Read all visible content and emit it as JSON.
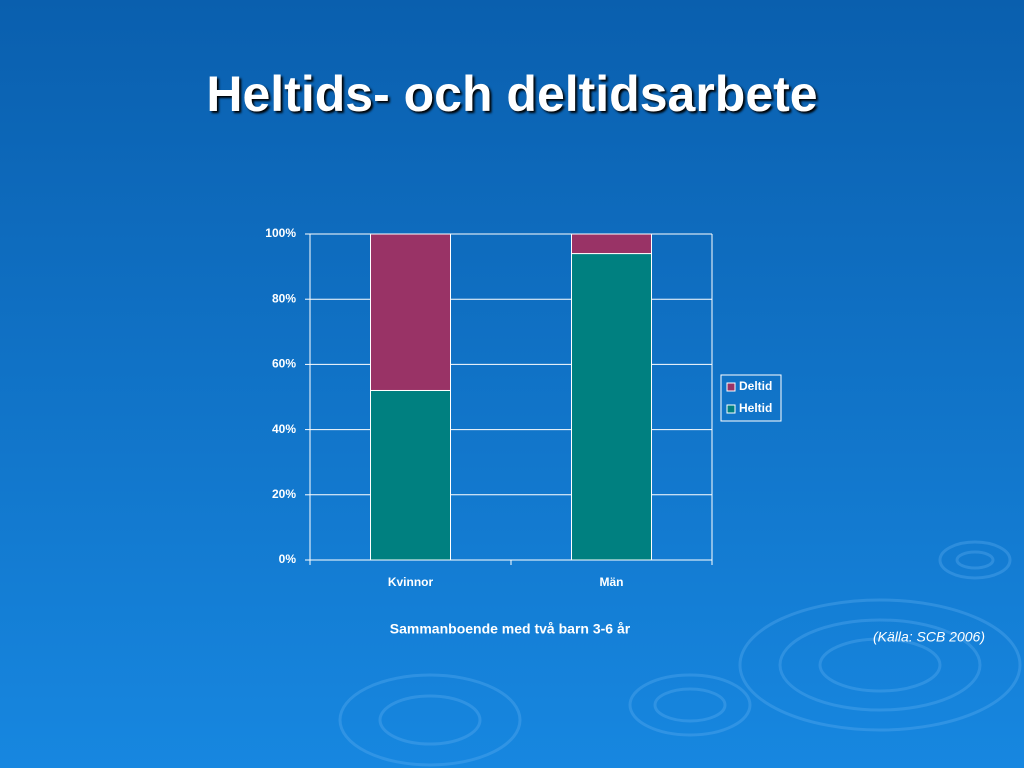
{
  "chart_data": {
    "type": "stacked_bar",
    "title": "Heltids- och deltidsarbete",
    "categories": [
      "Kvinnor",
      "Män"
    ],
    "series": [
      {
        "name": "Heltid",
        "color": "#008080",
        "values": [
          52,
          94
        ]
      },
      {
        "name": "Deltid",
        "color": "#993366",
        "values": [
          48,
          6
        ]
      }
    ],
    "ylim": [
      0,
      100
    ],
    "yticks": [
      {
        "value": 0,
        "label": "0%"
      },
      {
        "value": 20,
        "label": "20%"
      },
      {
        "value": 40,
        "label": "40%"
      },
      {
        "value": 60,
        "label": "60%"
      },
      {
        "value": 80,
        "label": "80%"
      },
      {
        "value": 100,
        "label": "100%"
      }
    ],
    "xlabel": "Sammanboende med två barn 3-6 år",
    "annotation": "(Källa: SCB 2006)",
    "grid": true,
    "legend": "right"
  }
}
